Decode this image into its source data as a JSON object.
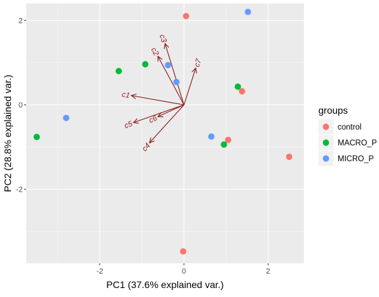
{
  "chart_data": {
    "type": "scatter",
    "title": "",
    "xlabel": "PC1 (37.6% explained var.)",
    "ylabel": "PC2 (28.8% explained var.)",
    "xlim": [
      -3.75,
      2.85
    ],
    "ylim": [
      -3.75,
      2.4
    ],
    "x_ticks": [
      -2,
      0,
      2
    ],
    "y_ticks": [
      -2,
      0,
      2
    ],
    "x_tick_labels": [
      "-2",
      "0",
      "2"
    ],
    "y_tick_labels": [
      "-2",
      "0",
      "2"
    ],
    "grid": true,
    "legend_position": "right",
    "legend_title": "groups",
    "series": [
      {
        "name": "control",
        "color": "#F8766D",
        "points": [
          {
            "x": 0.05,
            "y": 2.1
          },
          {
            "x": 1.38,
            "y": 0.32
          },
          {
            "x": 1.05,
            "y": -0.83
          },
          {
            "x": 2.5,
            "y": -1.23
          },
          {
            "x": -0.02,
            "y": -3.47
          }
        ]
      },
      {
        "name": "MACRO_P",
        "color": "#00BA38",
        "points": [
          {
            "x": -0.92,
            "y": 0.96
          },
          {
            "x": -1.55,
            "y": 0.8
          },
          {
            "x": 1.28,
            "y": 0.43
          },
          {
            "x": 0.95,
            "y": -0.94
          },
          {
            "x": -3.5,
            "y": -0.76
          }
        ]
      },
      {
        "name": "MICRO_P",
        "color": "#619CFF",
        "points": [
          {
            "x": 1.52,
            "y": 2.2
          },
          {
            "x": -0.38,
            "y": 0.94
          },
          {
            "x": -0.18,
            "y": 0.54
          },
          {
            "x": 0.65,
            "y": -0.75
          },
          {
            "x": -2.8,
            "y": -0.31
          }
        ]
      }
    ],
    "loadings": {
      "color": "#8B1A1A",
      "origin": {
        "x": 0,
        "y": 0
      },
      "arrows": [
        {
          "label": "c1",
          "x": -1.25,
          "y": 0.22
        },
        {
          "label": "c2",
          "x": -0.62,
          "y": 1.15
        },
        {
          "label": "c3",
          "x": -0.45,
          "y": 1.45
        },
        {
          "label": "c7",
          "x": 0.28,
          "y": 0.87
        },
        {
          "label": "c5",
          "x": -1.2,
          "y": -0.42
        },
        {
          "label": "c6",
          "x": -0.62,
          "y": -0.28
        },
        {
          "label": "c4",
          "x": -0.82,
          "y": -0.9
        }
      ]
    }
  }
}
